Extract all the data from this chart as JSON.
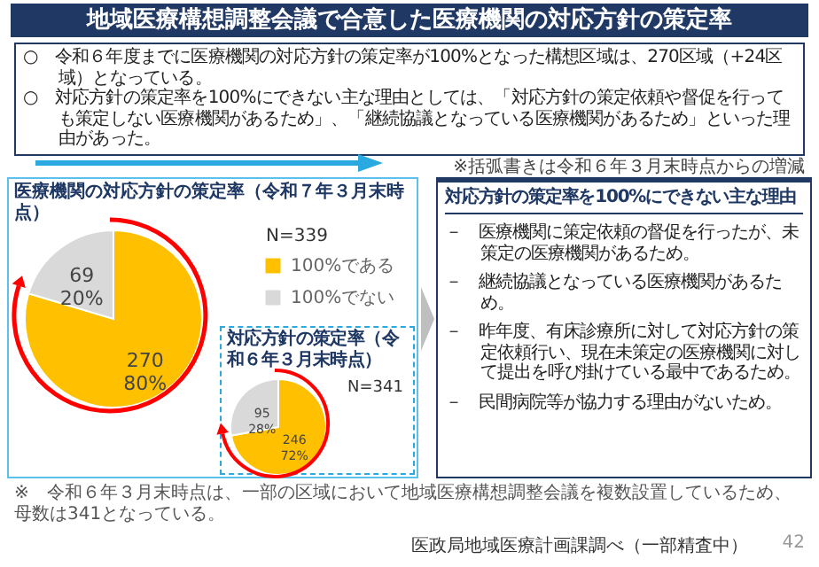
{
  "chart_data": [
    {
      "type": "other",
      "title": "地域医療構想調整会議で合意した医療機関の対応方針の策定率",
      "annotations": [
        "○　令和６年度までに医療機関の対応方針の策定率が100%となった構想区域は、270区域（+24区域）となっている。",
        "○　対応方針の策定率を100%にできない主な理由としては、「対応方針の策定依頼や督促を行っても策定しない医療機関があるため」、「継続協議となっている医療機関があるため」といった理由があった。",
        "※括弧書きは令和６年３月末時点からの増減"
      ]
    },
    {
      "type": "pie",
      "title": "医療機関の対応方針の策定率（令和７年３月末時点）",
      "categories": [
        "100%である",
        "100%でない"
      ],
      "values": [
        270,
        69
      ],
      "value_labels": [
        "270\n80%",
        "69\n20%"
      ],
      "colors": [
        "#ffc000",
        "#d9d9d9"
      ],
      "legend": "right",
      "annotations": [
        "N=339"
      ]
    },
    {
      "type": "pie",
      "title": "対応方針の策定率（令和６年３月末時点）",
      "categories": [
        null,
        null
      ],
      "values": [
        246,
        95
      ],
      "value_labels": [
        "246\n72%",
        "95\n28%"
      ],
      "colors": [
        "#ffc000",
        "#d9d9d9"
      ],
      "annotations": [
        "N=341"
      ]
    },
    {
      "type": "other",
      "title": "対応方針の策定率を100%にできない主な理由",
      "annotations": [
        "－　医療機関に策定依頼の督促を行ったが、未策定の医療機関があるため。",
        "－　継続協議となっている医療機関があるため。",
        "－　昨年度、有床診療所に対して対応方針の策定依頼行い、現在未策定の医療機関に対して提出を呼び掛けている最中であるため。",
        "－　民間病院等が協力する理由がないため。"
      ]
    },
    {
      "type": "other",
      "annotations": [
        "※　令和６年３月末時点は、一部の区域において地域医療構想調整会議を複数設置しているため、母数は341となっている。",
        "医政局地域医療計画課調べ（一部精査中）",
        "42"
      ]
    }
  ]
}
